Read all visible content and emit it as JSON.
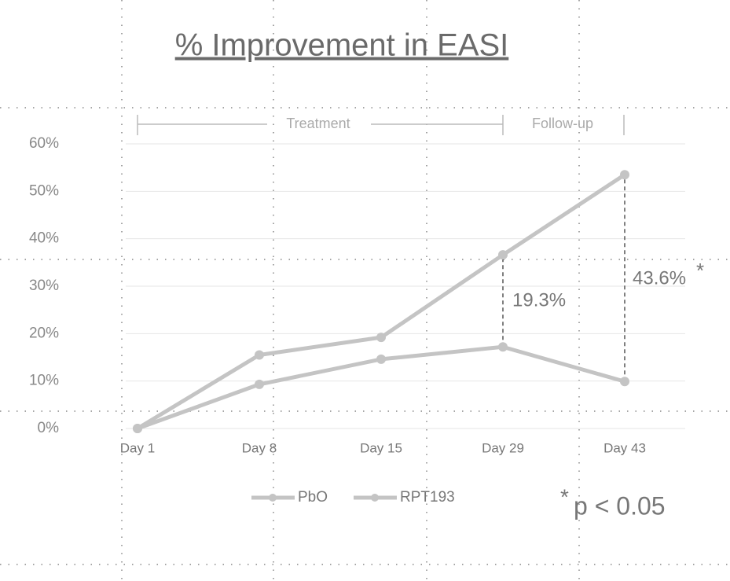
{
  "chart_data": {
    "type": "line",
    "title": "% Improvement in EASI",
    "categories": [
      "Day 1",
      "Day 8",
      "Day 15",
      "Day 29",
      "Day 43"
    ],
    "series": [
      {
        "name": "PbO",
        "color": "#c4c4c4",
        "values": [
          0,
          9.3,
          14.6,
          17.2,
          9.9
        ]
      },
      {
        "name": "RPT193",
        "color": "#c4c4c4",
        "values": [
          0,
          15.5,
          19.2,
          36.6,
          53.5
        ]
      }
    ],
    "ylim": [
      0,
      60
    ],
    "yticks": [
      {
        "value": 0,
        "label": "0%"
      },
      {
        "value": 10,
        "label": "10%"
      },
      {
        "value": 20,
        "label": "20%"
      },
      {
        "value": 30,
        "label": "30%"
      },
      {
        "value": 40,
        "label": "40%"
      },
      {
        "value": 50,
        "label": "50%"
      },
      {
        "value": 60,
        "label": "60%"
      }
    ],
    "grid": true,
    "legend": "bottom",
    "annotations": [
      "Treatment",
      "Follow-up",
      "19.3%",
      "43.6%",
      "*",
      "*",
      "p < 0.05"
    ]
  }
}
